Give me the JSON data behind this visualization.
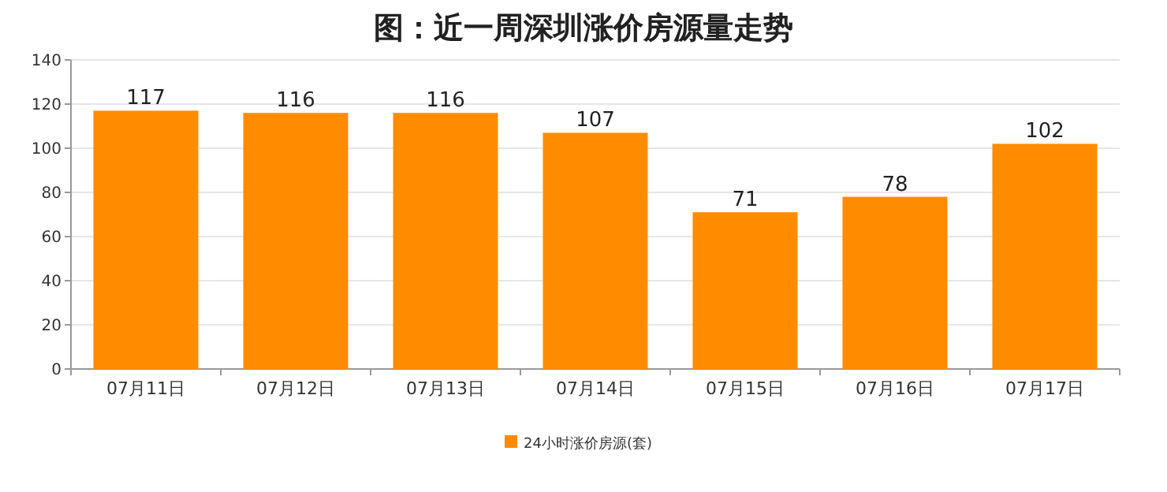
{
  "chart_data": {
    "type": "bar",
    "title": "图：近一周深圳涨价房源量走势",
    "categories": [
      "07月11日",
      "07月12日",
      "07月13日",
      "07月14日",
      "07月15日",
      "07月16日",
      "07月17日"
    ],
    "series": [
      {
        "name": "24小时涨价房源(套)",
        "color": "#ff8c00",
        "values": [
          117,
          116,
          116,
          107,
          71,
          78,
          102
        ]
      }
    ],
    "ylim": [
      0,
      140
    ],
    "yticks": [
      0,
      20,
      40,
      60,
      80,
      100,
      120,
      140
    ],
    "grid": "y",
    "legend": "bottom",
    "data_labels": true
  }
}
